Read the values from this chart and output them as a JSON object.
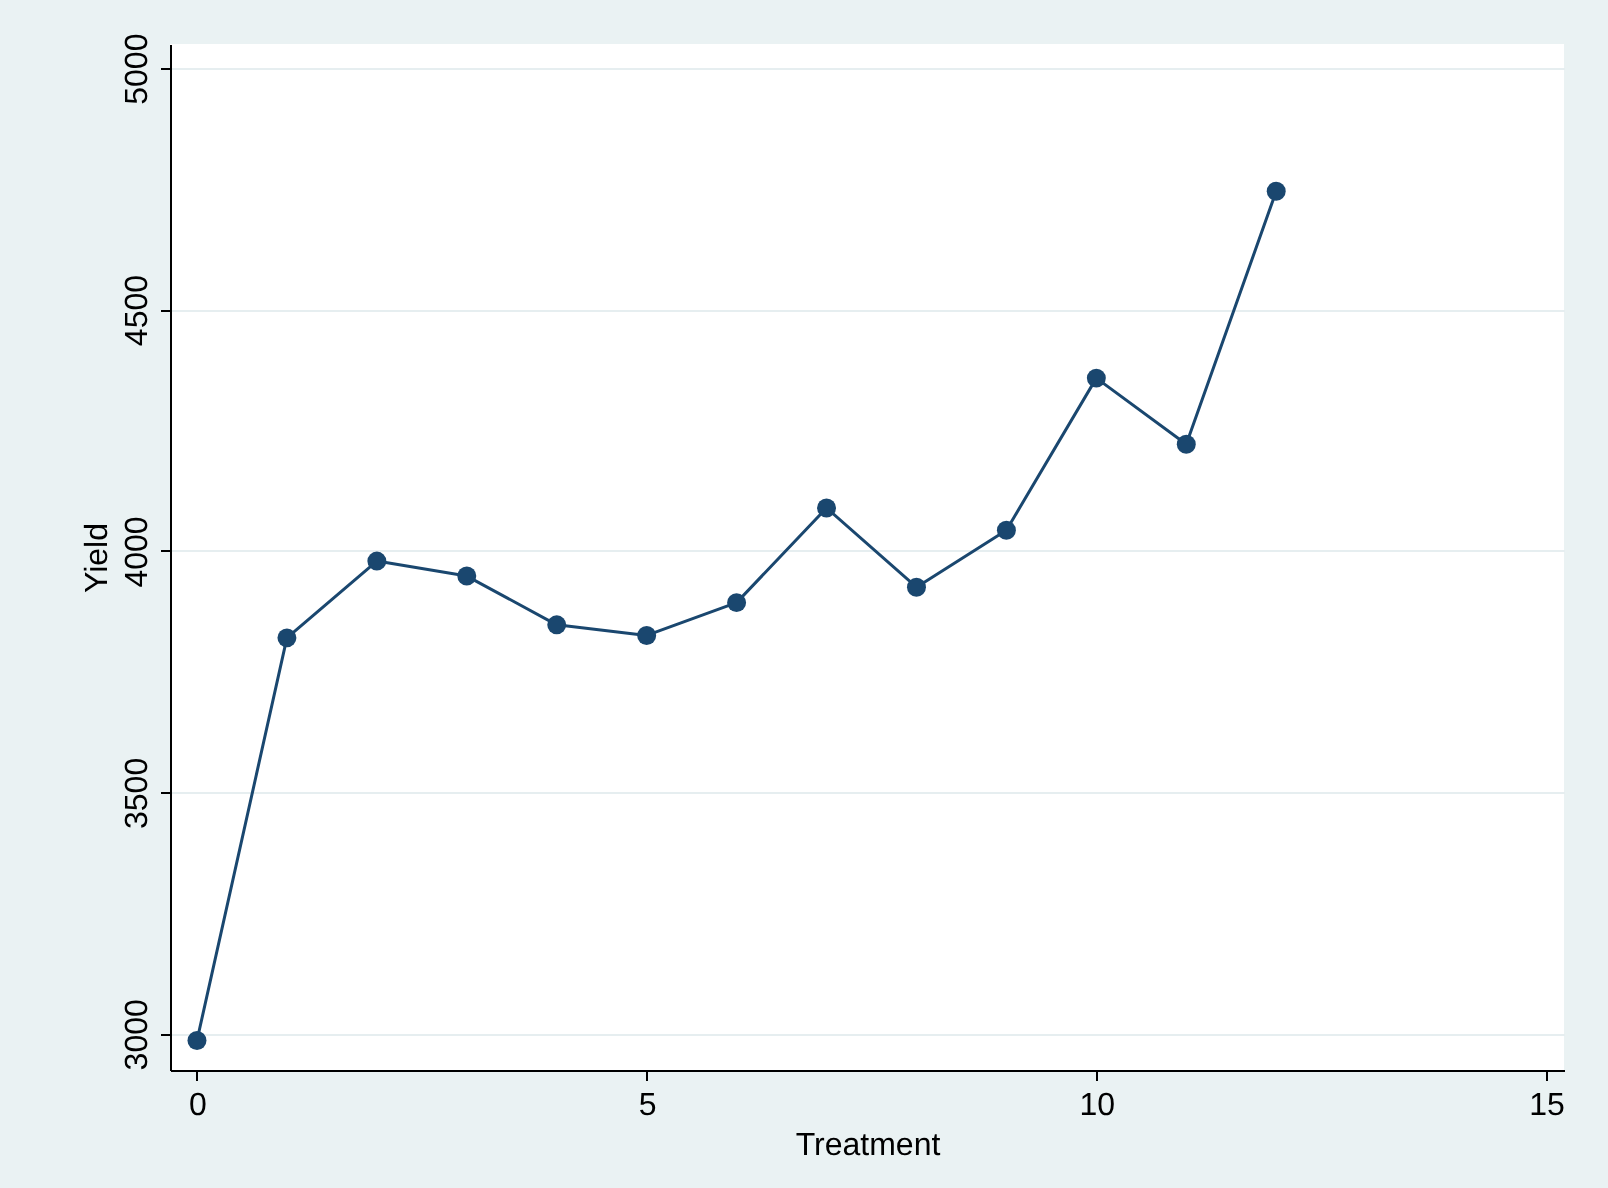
{
  "chart_data": {
    "type": "line",
    "xlabel": "Treatment",
    "ylabel": "Yield",
    "x": [
      0,
      1,
      2,
      3,
      4,
      5,
      6,
      7,
      8,
      9,
      10,
      11,
      12
    ],
    "series": [
      {
        "color": "#1a476f",
        "values": [
          2986,
          3820,
          3979,
          3948,
          3847,
          3825,
          3893,
          4089,
          3925,
          4043,
          4358,
          4221,
          4745
        ]
      }
    ],
    "xlim": [
      -0.3,
      15.2
    ],
    "ylim": [
      2925,
      5050
    ],
    "xticks": [
      0,
      5,
      10,
      15
    ],
    "yticks": [
      3000,
      3500,
      4000,
      4500,
      5000
    ],
    "grid": "y",
    "marker": "circle",
    "line_style": "solid"
  }
}
